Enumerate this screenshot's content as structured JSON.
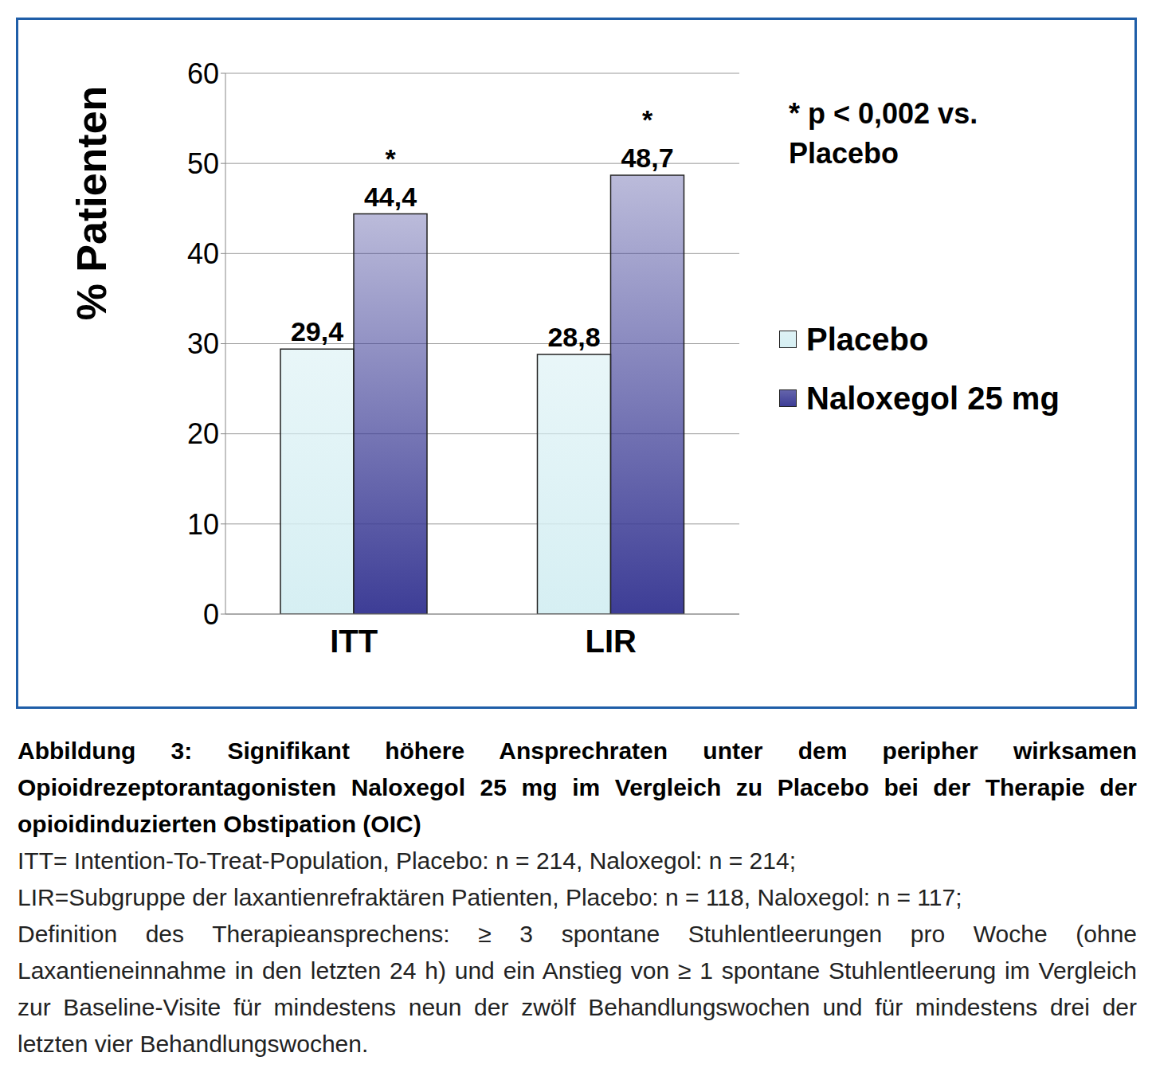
{
  "chart_data": {
    "type": "bar",
    "title": "Abbildung 3: Signifikant höhere Ansprechraten unter dem peripher wirksamen Opioidrezeptorantagonisten Naloxegol 25 mg im Vergleich zu Placebo bei der Therapie der opioidinduzierten Obstipation (OIC)",
    "notes": [
      "ITT= Intention-To-Treat-Population, Placebo: n = 214, Naloxegol: n = 214;",
      "LIR=Subgruppe der laxantienrefraktären Patienten, Placebo: n = 118, Naloxegol: n = 117;",
      "Definition des Therapieansprechens: ≥ 3 spontane Stuhlentleerungen pro Woche (ohne Laxantieneinnahme in den letzten 24 h) und ein Anstieg von ≥ 1 spontane Stuhlentleerung im Vergleich zur Baseline-Visite für mindestens neun der zwölf Behandlungswochen und für mindestens drei der letzten vier Behandlungswochen."
    ],
    "y_label": "% Patienten",
    "annotation": "* p < 0,002 vs. Placebo",
    "categories": [
      "ITT",
      "LIR"
    ],
    "series": [
      {
        "name": "Placebo",
        "color": "#d6eff3",
        "values": [
          29.4,
          28.8
        ],
        "value_labels": [
          "29,4",
          "28,8"
        ]
      },
      {
        "name": "Naloxegol 25 mg",
        "color": "#3d3d96",
        "values": [
          44.4,
          48.7
        ],
        "value_labels": [
          "44,4",
          "48,7"
        ],
        "value_annotations": [
          "*",
          "*"
        ]
      }
    ],
    "ylim": [
      0,
      60
    ],
    "yticks": [
      0,
      10,
      20,
      30,
      40,
      50,
      60
    ],
    "grid": true,
    "legend": "right",
    "data_labels": true
  }
}
